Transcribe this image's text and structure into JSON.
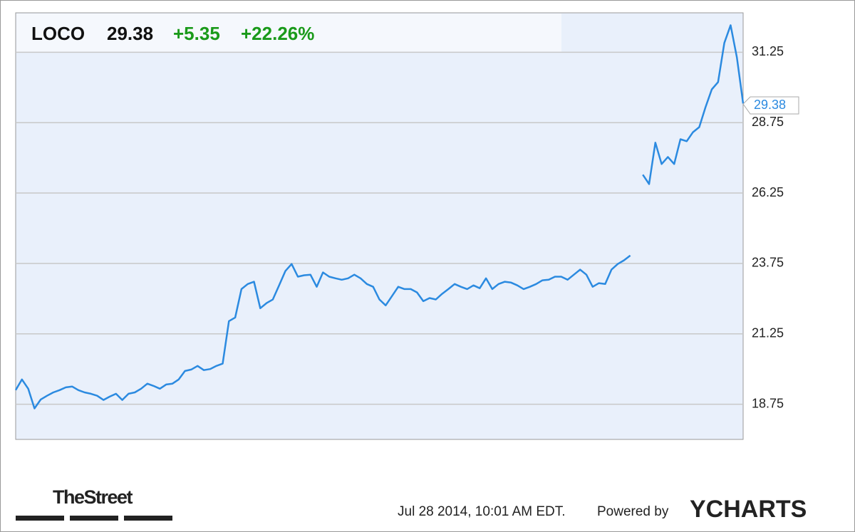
{
  "chart_data": {
    "type": "line",
    "ticker": "LOCO",
    "price": "29.38",
    "change": "+5.35",
    "change_pct": "+22.26%",
    "values": [
      19.25,
      19.63,
      19.3,
      18.6,
      18.92,
      19.05,
      19.17,
      19.25,
      19.35,
      19.38,
      19.25,
      19.17,
      19.12,
      19.05,
      18.9,
      19.02,
      19.12,
      18.9,
      19.12,
      19.17,
      19.3,
      19.48,
      19.4,
      19.3,
      19.45,
      19.48,
      19.63,
      19.93,
      19.98,
      20.11,
      19.96,
      20.0,
      20.11,
      20.19,
      21.7,
      21.83,
      22.84,
      23.02,
      23.1,
      22.16,
      22.34,
      22.47,
      22.97,
      23.48,
      23.73,
      23.28,
      23.33,
      23.35,
      22.92,
      23.43,
      23.28,
      23.22,
      23.17,
      23.22,
      23.35,
      23.22,
      23.02,
      22.92,
      22.47,
      22.26,
      22.59,
      22.92,
      22.84,
      22.84,
      22.72,
      22.41,
      22.52,
      22.47,
      22.67,
      22.84,
      23.02,
      22.92,
      22.84,
      22.97,
      22.87,
      23.22,
      22.84,
      23.02,
      23.1,
      23.07,
      22.97,
      22.84,
      22.92,
      23.02,
      23.15,
      23.17,
      23.28,
      23.28,
      23.17,
      23.35,
      23.53,
      23.35,
      22.92,
      23.05,
      23.02,
      23.53,
      23.73,
      23.86,
      24.03,
      null,
      26.9,
      26.57,
      28.04,
      27.28,
      27.53,
      27.28,
      28.16,
      28.09,
      28.41,
      28.59,
      29.3,
      29.93,
      30.19,
      31.58,
      32.21,
      31.07,
      29.43
    ],
    "color": "#2b8ae0",
    "ylim": [
      17.5,
      32.65
    ],
    "yticks": [
      18.75,
      21.25,
      23.75,
      26.25,
      28.75,
      31.25
    ],
    "grid": true,
    "timestamp": "Jul 28 2014, 10:01 AM EDT.",
    "powered_by": "Powered by",
    "brand": "YCHARTS",
    "source": "TheStreet"
  }
}
